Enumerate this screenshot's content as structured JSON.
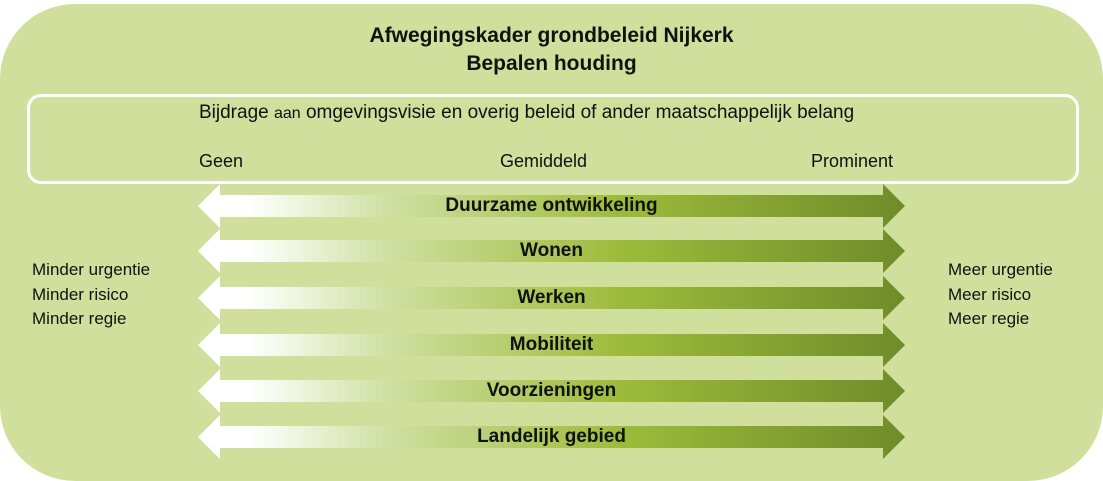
{
  "header": {
    "title": "Afwegingskader grondbeleid Nijkerk",
    "subtitle": "Bepalen houding"
  },
  "scale_box": {
    "heading_part1": "Bijdrage",
    "heading_part2": "aan",
    "heading_part3": "omgevingsvisie en overig beleid of ander maatschappelijk belang",
    "low_label": "Geen",
    "mid_label": "Gemiddeld",
    "high_label": "Prominent"
  },
  "arrows": [
    {
      "label": "Duurzame ontwikkeling"
    },
    {
      "label": "Wonen"
    },
    {
      "label": "Werken"
    },
    {
      "label": "Mobiliteit"
    },
    {
      "label": "Voorzieningen"
    },
    {
      "label": "Landelijk gebied"
    }
  ],
  "left_side": [
    "Minder urgentie",
    "Minder risico",
    "Minder regie"
  ],
  "right_side": [
    "Meer urgentie",
    "Meer risico",
    "Meer regie"
  ],
  "colors": {
    "background": "#d0df9c",
    "arrow_start": "#ffffff",
    "arrow_mid": "#9dbb3a",
    "arrow_end": "#6f8c2a"
  }
}
